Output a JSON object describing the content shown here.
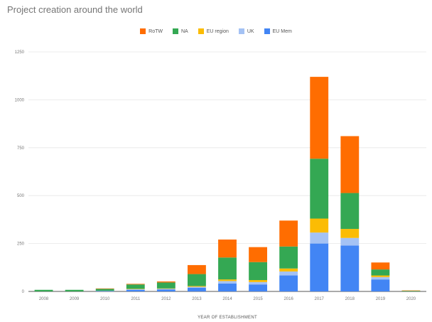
{
  "chart_data": {
    "type": "bar",
    "stacked": true,
    "title": "Project creation around the world",
    "xlabel": "YEAR OF ESTABLISHMENT",
    "ylabel": "",
    "ylim": [
      0,
      1200
    ],
    "yticks": [
      "0",
      "250",
      "500",
      "750",
      "1000",
      "1250"
    ],
    "legend_position": "top",
    "grid": true,
    "categories": [
      "2008",
      "2009",
      "2010",
      "2011",
      "2012",
      "2013",
      "2014",
      "2015",
      "2016",
      "2017",
      "2018",
      "2019",
      "2020"
    ],
    "series": [
      {
        "name": "EU Mem",
        "color": "#4285f4",
        "values": [
          0,
          0,
          2,
          8,
          10,
          18,
          40,
          35,
          80,
          240,
          230,
          60,
          0
        ]
      },
      {
        "name": "UK",
        "color": "#a4c2f4",
        "values": [
          0,
          0,
          1,
          3,
          3,
          5,
          12,
          12,
          20,
          55,
          38,
          12,
          0
        ]
      },
      {
        "name": "EU region",
        "color": "#fbbc04",
        "values": [
          0,
          0,
          0,
          2,
          2,
          4,
          8,
          10,
          15,
          70,
          45,
          8,
          0
        ]
      },
      {
        "name": "NA",
        "color": "#34a853",
        "values": [
          8,
          8,
          10,
          22,
          30,
          60,
          110,
          90,
          110,
          300,
          180,
          30,
          3
        ]
      },
      {
        "name": "RoTW",
        "color": "#ff6d01",
        "values": [
          0,
          0,
          2,
          3,
          5,
          45,
          90,
          75,
          130,
          410,
          285,
          35,
          2
        ]
      }
    ]
  }
}
